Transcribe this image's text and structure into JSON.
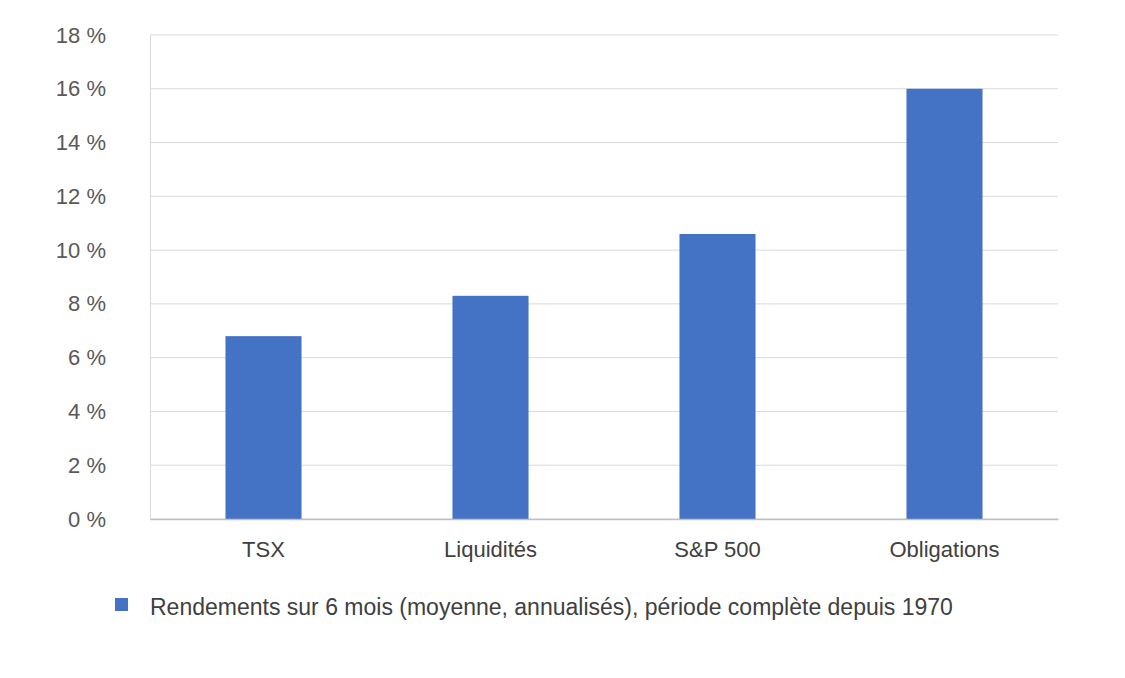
{
  "chart_data": {
    "type": "bar",
    "categories": [
      "TSX",
      "Liquidités",
      "S&P 500",
      "Obligations"
    ],
    "series": [
      {
        "name": "Rendements sur 6 mois (moyenne, annualisés), période complète depuis 1970",
        "color": "#4472c4",
        "values": [
          6.8,
          8.3,
          10.6,
          16.0
        ]
      }
    ],
    "ylim": [
      0,
      18
    ],
    "yticks": [
      {
        "value": 0,
        "label": "0 %"
      },
      {
        "value": 2,
        "label": "2 %"
      },
      {
        "value": 4,
        "label": "4 %"
      },
      {
        "value": 6,
        "label": "6 %"
      },
      {
        "value": 8,
        "label": "8 %"
      },
      {
        "value": 10,
        "label": "10 %"
      },
      {
        "value": 12,
        "label": "12 %"
      },
      {
        "value": 14,
        "label": "14 %"
      },
      {
        "value": 16,
        "label": "16 %"
      },
      {
        "value": 18,
        "label": "18 %"
      }
    ],
    "grid": true,
    "legend": "bottom"
  }
}
